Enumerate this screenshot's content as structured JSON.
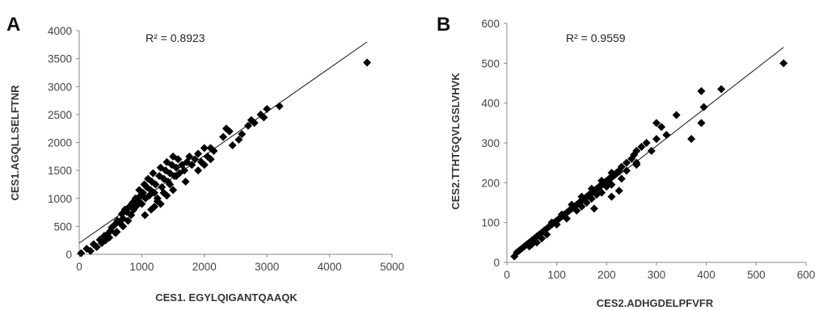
{
  "chart_data": [
    {
      "type": "scatter",
      "panel_label": "A",
      "xlabel": "CES1. EGYLQIGANTQAAQK",
      "ylabel": "CES1.AGQLLSELFTNR",
      "annotation": "R² = 0.8923",
      "xlim": [
        0,
        5000
      ],
      "ylim": [
        0,
        4000
      ],
      "xticks": [
        "0",
        "1000",
        "2000",
        "3000",
        "4000",
        "5000"
      ],
      "yticks": [
        "0",
        "500",
        "1000",
        "1500",
        "2000",
        "2500",
        "3000",
        "3500",
        "4000"
      ],
      "marker": "diamond",
      "color": "#000000",
      "trendline": {
        "x": [
          0,
          4600
        ],
        "y": [
          200,
          3800
        ]
      },
      "points": [
        [
          30,
          20
        ],
        [
          120,
          100
        ],
        [
          180,
          60
        ],
        [
          230,
          180
        ],
        [
          280,
          130
        ],
        [
          330,
          260
        ],
        [
          360,
          200
        ],
        [
          400,
          330
        ],
        [
          420,
          250
        ],
        [
          450,
          360
        ],
        [
          480,
          300
        ],
        [
          500,
          420
        ],
        [
          520,
          480
        ],
        [
          560,
          520
        ],
        [
          580,
          380
        ],
        [
          610,
          600
        ],
        [
          650,
          560
        ],
        [
          680,
          720
        ],
        [
          700,
          640
        ],
        [
          730,
          800
        ],
        [
          760,
          760
        ],
        [
          780,
          600
        ],
        [
          800,
          850
        ],
        [
          830,
          700
        ],
        [
          850,
          920
        ],
        [
          870,
          800
        ],
        [
          900,
          1000
        ],
        [
          920,
          870
        ],
        [
          940,
          950
        ],
        [
          960,
          1150
        ],
        [
          980,
          1050
        ],
        [
          1000,
          900
        ],
        [
          1020,
          1100
        ],
        [
          1040,
          1250
        ],
        [
          1060,
          1000
        ],
        [
          1080,
          1200
        ],
        [
          1100,
          1350
        ],
        [
          1120,
          1050
        ],
        [
          1140,
          1150
        ],
        [
          1160,
          1300
        ],
        [
          1180,
          1450
        ],
        [
          1200,
          1100
        ],
        [
          1220,
          1250
        ],
        [
          1250,
          1000
        ],
        [
          1280,
          1400
        ],
        [
          1300,
          1550
        ],
        [
          1320,
          1200
        ],
        [
          1350,
          1350
        ],
        [
          1380,
          1500
        ],
        [
          1400,
          1650
        ],
        [
          1420,
          1300
        ],
        [
          1450,
          1450
        ],
        [
          1480,
          1600
        ],
        [
          1500,
          1750
        ],
        [
          1520,
          1400
        ],
        [
          1550,
          1550
        ],
        [
          1580,
          1700
        ],
        [
          1600,
          1450
        ],
        [
          1640,
          1600
        ],
        [
          1680,
          1500
        ],
        [
          1720,
          1650
        ],
        [
          1760,
          1750
        ],
        [
          1800,
          1600
        ],
        [
          1850,
          1700
        ],
        [
          1900,
          1800
        ],
        [
          1950,
          1650
        ],
        [
          2000,
          1900
        ],
        [
          2050,
          1750
        ],
        [
          2100,
          1700
        ],
        [
          2150,
          1850
        ],
        [
          2300,
          2100
        ],
        [
          2350,
          2250
        ],
        [
          2400,
          2200
        ],
        [
          2450,
          1950
        ],
        [
          2550,
          2050
        ],
        [
          2600,
          2150
        ],
        [
          2700,
          2300
        ],
        [
          2750,
          2400
        ],
        [
          2800,
          2350
        ],
        [
          2900,
          2500
        ],
        [
          2950,
          2450
        ],
        [
          3000,
          2600
        ],
        [
          3200,
          2650
        ],
        [
          4600,
          3430
        ],
        [
          1050,
          700
        ],
        [
          1150,
          800
        ],
        [
          1250,
          950
        ],
        [
          1350,
          1100
        ],
        [
          1450,
          1250
        ],
        [
          1550,
          1400
        ],
        [
          700,
          500
        ],
        [
          600,
          400
        ],
        [
          1900,
          1500
        ],
        [
          2000,
          1600
        ],
        [
          2100,
          1900
        ],
        [
          1700,
          1300
        ],
        [
          1500,
          1150
        ],
        [
          1400,
          1050
        ],
        [
          1300,
          900
        ],
        [
          1200,
          850
        ]
      ]
    },
    {
      "type": "scatter",
      "panel_label": "B",
      "xlabel": "CES2.ADHGDELPFVFR",
      "ylabel": "CES2.TTHTGQVLGSLVHVK",
      "annotation": "R² = 0.9559",
      "xlim": [
        0,
        600
      ],
      "ylim": [
        0,
        600
      ],
      "xticks": [
        "0",
        "100",
        "200",
        "300",
        "400",
        "500",
        "600"
      ],
      "yticks": [
        "0",
        "100",
        "200",
        "300",
        "400",
        "500",
        "600"
      ],
      "marker": "diamond",
      "color": "#000000",
      "trendline": {
        "x": [
          20,
          555
        ],
        "y": [
          20,
          540
        ]
      },
      "points": [
        [
          15,
          15
        ],
        [
          20,
          25
        ],
        [
          25,
          30
        ],
        [
          30,
          35
        ],
        [
          35,
          40
        ],
        [
          40,
          45
        ],
        [
          45,
          50
        ],
        [
          50,
          55
        ],
        [
          55,
          60
        ],
        [
          60,
          65
        ],
        [
          65,
          70
        ],
        [
          70,
          75
        ],
        [
          75,
          80
        ],
        [
          80,
          85
        ],
        [
          85,
          90
        ],
        [
          90,
          95
        ],
        [
          95,
          100
        ],
        [
          100,
          105
        ],
        [
          105,
          110
        ],
        [
          110,
          115
        ],
        [
          115,
          120
        ],
        [
          120,
          125
        ],
        [
          125,
          130
        ],
        [
          130,
          135
        ],
        [
          135,
          140
        ],
        [
          140,
          145
        ],
        [
          145,
          150
        ],
        [
          150,
          155
        ],
        [
          155,
          160
        ],
        [
          160,
          165
        ],
        [
          165,
          170
        ],
        [
          170,
          175
        ],
        [
          175,
          180
        ],
        [
          180,
          185
        ],
        [
          185,
          190
        ],
        [
          190,
          195
        ],
        [
          195,
          200
        ],
        [
          200,
          205
        ],
        [
          205,
          210
        ],
        [
          210,
          215
        ],
        [
          215,
          220
        ],
        [
          220,
          225
        ],
        [
          225,
          230
        ],
        [
          230,
          240
        ],
        [
          240,
          250
        ],
        [
          250,
          260
        ],
        [
          255,
          270
        ],
        [
          260,
          280
        ],
        [
          270,
          290
        ],
        [
          280,
          300
        ],
        [
          300,
          310
        ],
        [
          310,
          340
        ],
        [
          320,
          320
        ],
        [
          340,
          370
        ],
        [
          370,
          310
        ],
        [
          390,
          350
        ],
        [
          390,
          430
        ],
        [
          395,
          390
        ],
        [
          430,
          435
        ],
        [
          555,
          500
        ],
        [
          60,
          50
        ],
        [
          80,
          70
        ],
        [
          100,
          95
        ],
        [
          120,
          110
        ],
        [
          140,
          130
        ],
        [
          160,
          150
        ],
        [
          180,
          170
        ],
        [
          200,
          190
        ],
        [
          90,
          100
        ],
        [
          110,
          120
        ],
        [
          130,
          145
        ],
        [
          150,
          165
        ],
        [
          170,
          185
        ],
        [
          190,
          205
        ],
        [
          210,
          225
        ],
        [
          150,
          140
        ],
        [
          170,
          160
        ],
        [
          190,
          175
        ],
        [
          210,
          195
        ],
        [
          225,
          180
        ],
        [
          70,
          60
        ],
        [
          50,
          45
        ],
        [
          45,
          40
        ],
        [
          230,
          210
        ],
        [
          240,
          230
        ],
        [
          260,
          250
        ],
        [
          175,
          135
        ],
        [
          210,
          165
        ],
        [
          260,
          245
        ],
        [
          290,
          280
        ],
        [
          300,
          350
        ]
      ]
    }
  ]
}
